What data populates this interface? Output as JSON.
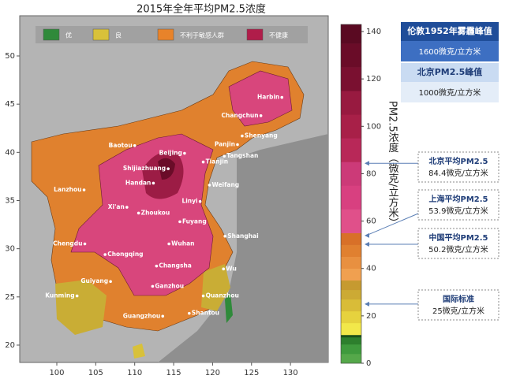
{
  "title": "2015年全年平均PM2.5浓度",
  "legend": [
    {
      "label": "优",
      "color": "#2f8a3a"
    },
    {
      "label": "良",
      "color": "#d8c13a"
    },
    {
      "label": "不利于敏感人群",
      "color": "#e8832a"
    },
    {
      "label": "不健康",
      "color": "#b01d4a"
    }
  ],
  "map": {
    "xlim": [
      95.24,
      134.85
    ],
    "ylim": [
      18.2,
      54.17
    ],
    "xticks": [
      100,
      105,
      110,
      115,
      120,
      125,
      130
    ],
    "yticks": [
      20,
      25,
      30,
      35,
      40,
      45,
      50
    ],
    "cities": [
      {
        "name": "Harbin",
        "lon": 128.9,
        "lat": 45.7
      },
      {
        "name": "Changchun",
        "lon": 126.2,
        "lat": 43.8
      },
      {
        "name": "Shenyang",
        "lon": 123.8,
        "lat": 41.7
      },
      {
        "name": "Baotou",
        "lon": 110.0,
        "lat": 40.7
      },
      {
        "name": "Beijing",
        "lon": 116.4,
        "lat": 39.9
      },
      {
        "name": "Panjin",
        "lon": 123.2,
        "lat": 40.8
      },
      {
        "name": "Tianjin",
        "lon": 118.8,
        "lat": 39.0
      },
      {
        "name": "Tangshan",
        "lon": 121.5,
        "lat": 39.6
      },
      {
        "name": "Shijiazhuang",
        "lon": 114.3,
        "lat": 38.3
      },
      {
        "name": "Handan",
        "lon": 112.4,
        "lat": 36.8
      },
      {
        "name": "Weifang",
        "lon": 119.6,
        "lat": 36.6
      },
      {
        "name": "Lanzhou",
        "lon": 103.5,
        "lat": 36.1
      },
      {
        "name": "Xi'an",
        "lon": 109.0,
        "lat": 34.3
      },
      {
        "name": "Linyi",
        "lon": 118.4,
        "lat": 34.9
      },
      {
        "name": "Zhoukou",
        "lon": 110.5,
        "lat": 33.7
      },
      {
        "name": "Fuyang",
        "lon": 115.8,
        "lat": 32.8
      },
      {
        "name": "Shanghai",
        "lon": 121.6,
        "lat": 31.3
      },
      {
        "name": "Chengdu",
        "lon": 103.6,
        "lat": 30.5
      },
      {
        "name": "Chongqing",
        "lon": 106.2,
        "lat": 29.4
      },
      {
        "name": "Wuhan",
        "lon": 114.4,
        "lat": 30.5
      },
      {
        "name": "Changsha",
        "lon": 112.8,
        "lat": 28.2
      },
      {
        "name": "Guiyang",
        "lon": 106.9,
        "lat": 26.6
      },
      {
        "name": "Kunming",
        "lon": 102.6,
        "lat": 25.1
      },
      {
        "name": "Ganzhou",
        "lon": 112.3,
        "lat": 26.1
      },
      {
        "name": "Quanzhou",
        "lon": 118.8,
        "lat": 25.1
      },
      {
        "name": "Shantou",
        "lon": 117.0,
        "lat": 23.3
      },
      {
        "name": "Guangzhou",
        "lon": 113.6,
        "lat": 23.0
      },
      {
        "name": "Wu",
        "lon": 121.4,
        "lat": 27.9
      }
    ]
  },
  "colorbar": {
    "label": "PM2.5浓度（微克/立方米）",
    "lim": [
      0,
      143
    ],
    "ticks": [
      0,
      20,
      40,
      60,
      80,
      100,
      120,
      140
    ],
    "bands": [
      {
        "from": 0,
        "to": 4,
        "color": "#55a84a"
      },
      {
        "from": 4,
        "to": 8,
        "color": "#3f9a3d"
      },
      {
        "from": 8,
        "to": 11,
        "color": "#2d7f2d"
      },
      {
        "from": 11,
        "to": 12,
        "color": "#1a4f1a"
      },
      {
        "from": 12,
        "to": 17,
        "color": "#f2e84a"
      },
      {
        "from": 17,
        "to": 22,
        "color": "#e6d23e"
      },
      {
        "from": 22,
        "to": 27,
        "color": "#d9bc38"
      },
      {
        "from": 27,
        "to": 31,
        "color": "#ccaa34"
      },
      {
        "from": 31,
        "to": 35,
        "color": "#c69a30"
      },
      {
        "from": 35,
        "to": 40,
        "color": "#f0a050"
      },
      {
        "from": 40,
        "to": 45,
        "color": "#e89040"
      },
      {
        "from": 45,
        "to": 50,
        "color": "#e08030"
      },
      {
        "from": 50,
        "to": 55,
        "color": "#d87028"
      },
      {
        "from": 55,
        "to": 65,
        "color": "#e0508a"
      },
      {
        "from": 65,
        "to": 75,
        "color": "#d84080"
      },
      {
        "from": 75,
        "to": 85,
        "color": "#cc3a78"
      },
      {
        "from": 85,
        "to": 95,
        "color": "#b82858"
      },
      {
        "from": 95,
        "to": 105,
        "color": "#a82048"
      },
      {
        "from": 105,
        "to": 115,
        "color": "#981a40"
      },
      {
        "from": 115,
        "to": 125,
        "color": "#7a1030"
      },
      {
        "from": 125,
        "to": 135,
        "color": "#6a0c28"
      },
      {
        "from": 135,
        "to": 143,
        "color": "#5a0a22"
      }
    ]
  },
  "notes": [
    {
      "title": "伦敦1952年雾霾峰值",
      "text": "1600微克/立方米"
    },
    {
      "title": "北京PM2.5峰值",
      "text": "1000微克/立方米"
    }
  ],
  "markers": [
    {
      "title": "北京平均PM2.5",
      "text": "84.4微克/立方米",
      "value": 84.4
    },
    {
      "title": "上海平均PM2.5",
      "text": "53.9微克/立方米",
      "value": 53.9
    },
    {
      "title": "中国平均PM2.5",
      "text": "50.2微克/立方米",
      "value": 50.2
    },
    {
      "title": "国际标准",
      "text": "25微克/立方米",
      "value": 25
    }
  ]
}
